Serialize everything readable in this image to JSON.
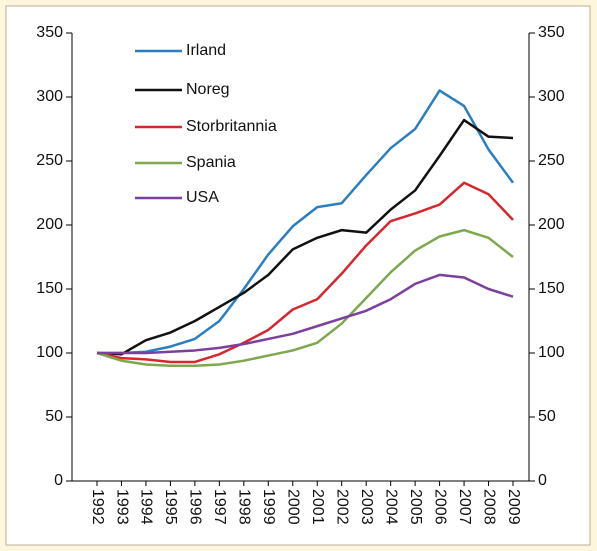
{
  "chart_data": {
    "type": "line",
    "categories": [
      "1992",
      "1993",
      "1994",
      "1995",
      "1996",
      "1997",
      "1998",
      "1999",
      "2000",
      "2001",
      "2002",
      "2003",
      "2004",
      "2005",
      "2006",
      "2007",
      "2008",
      "2009"
    ],
    "series": [
      {
        "name": "Irland",
        "color": "#2a7fc1",
        "values": [
          100,
          100,
          101,
          105,
          111,
          125,
          150,
          177,
          199,
          214,
          217,
          239,
          260,
          275,
          305,
          293,
          259,
          233
        ]
      },
      {
        "name": "Noreg",
        "color": "#111111",
        "values": [
          100,
          99,
          110,
          116,
          125,
          136,
          147,
          161,
          181,
          190,
          196,
          194,
          212,
          227,
          254,
          282,
          269,
          268
        ]
      },
      {
        "name": "Storbritannia",
        "color": "#d7262e",
        "values": [
          100,
          96,
          95,
          93,
          93,
          99,
          108,
          118,
          134,
          142,
          162,
          184,
          203,
          209,
          216,
          233,
          224,
          204
        ]
      },
      {
        "name": "Spania",
        "color": "#7ea84e",
        "values": [
          100,
          94,
          91,
          90,
          90,
          91,
          94,
          98,
          102,
          108,
          123,
          143,
          163,
          180,
          191,
          196,
          190,
          175
        ]
      },
      {
        "name": "USA",
        "color": "#7b3f9e",
        "values": [
          100,
          100,
          100,
          101,
          102,
          104,
          107,
          111,
          115,
          121,
          127,
          133,
          142,
          154,
          161,
          159,
          150,
          144
        ]
      }
    ],
    "ylim": [
      0,
      350
    ],
    "yticks": [
      0,
      50,
      100,
      150,
      200,
      250,
      300,
      350
    ],
    "y2lim": [
      0,
      350
    ],
    "y2ticks": [
      0,
      50,
      100,
      150,
      200,
      250,
      300,
      350
    ],
    "legend": "top-left"
  }
}
